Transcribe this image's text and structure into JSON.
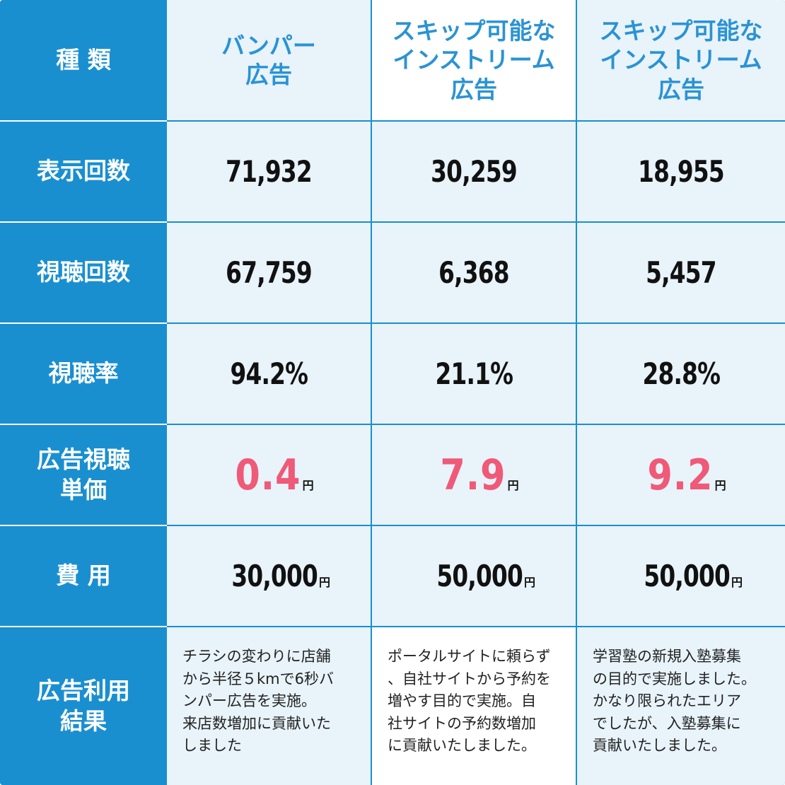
{
  "header": {
    "type_label": "種 類",
    "columns": [
      "バンパー\n広告",
      "スキップ可能な\nインストリーム\n広告",
      "スキップ可能な\nインストリーム\n広告"
    ]
  },
  "rows": {
    "impressions": {
      "label": "表示回数",
      "values": [
        "71,932",
        "30,259",
        "18,955"
      ]
    },
    "views": {
      "label": "視聴回数",
      "values": [
        "67,759",
        "6,368",
        "5,457"
      ]
    },
    "view_rate": {
      "label": "視聴率",
      "values": [
        "94.2%",
        "21.1%",
        "28.8%"
      ]
    },
    "cpv": {
      "label": "広告視聴\n単価",
      "values": [
        "0.4",
        "7.9",
        "9.2"
      ],
      "unit": "円"
    },
    "cost": {
      "label": "費 用",
      "values": [
        "30,000",
        "50,000",
        "50,000"
      ],
      "unit": "円"
    },
    "result": {
      "label": "広告利用\n結果",
      "values": [
        "チラシの変わりに店舗\nから半径５kmで6秒バ\nンパー広告を実施。\n来店数増加に貢献いた\nしました",
        "ポータルサイトに頼らず\n、自社サイトから予約を\n増やす目的で実施。自\n社サイトの予約数増加\nに貢献いたしました。",
        "学習塾の新規入塾募集\nの目的で実施しました。\nかなり限られたエリア\nでしたが、入塾募集に\n貢献いたしました。"
      ]
    }
  },
  "colors": {
    "header_blue": "#1a8fd0",
    "title_blue": "#2a93d3",
    "accent_pink": "#ef5a78",
    "light_bg": "#e8f3fa"
  }
}
